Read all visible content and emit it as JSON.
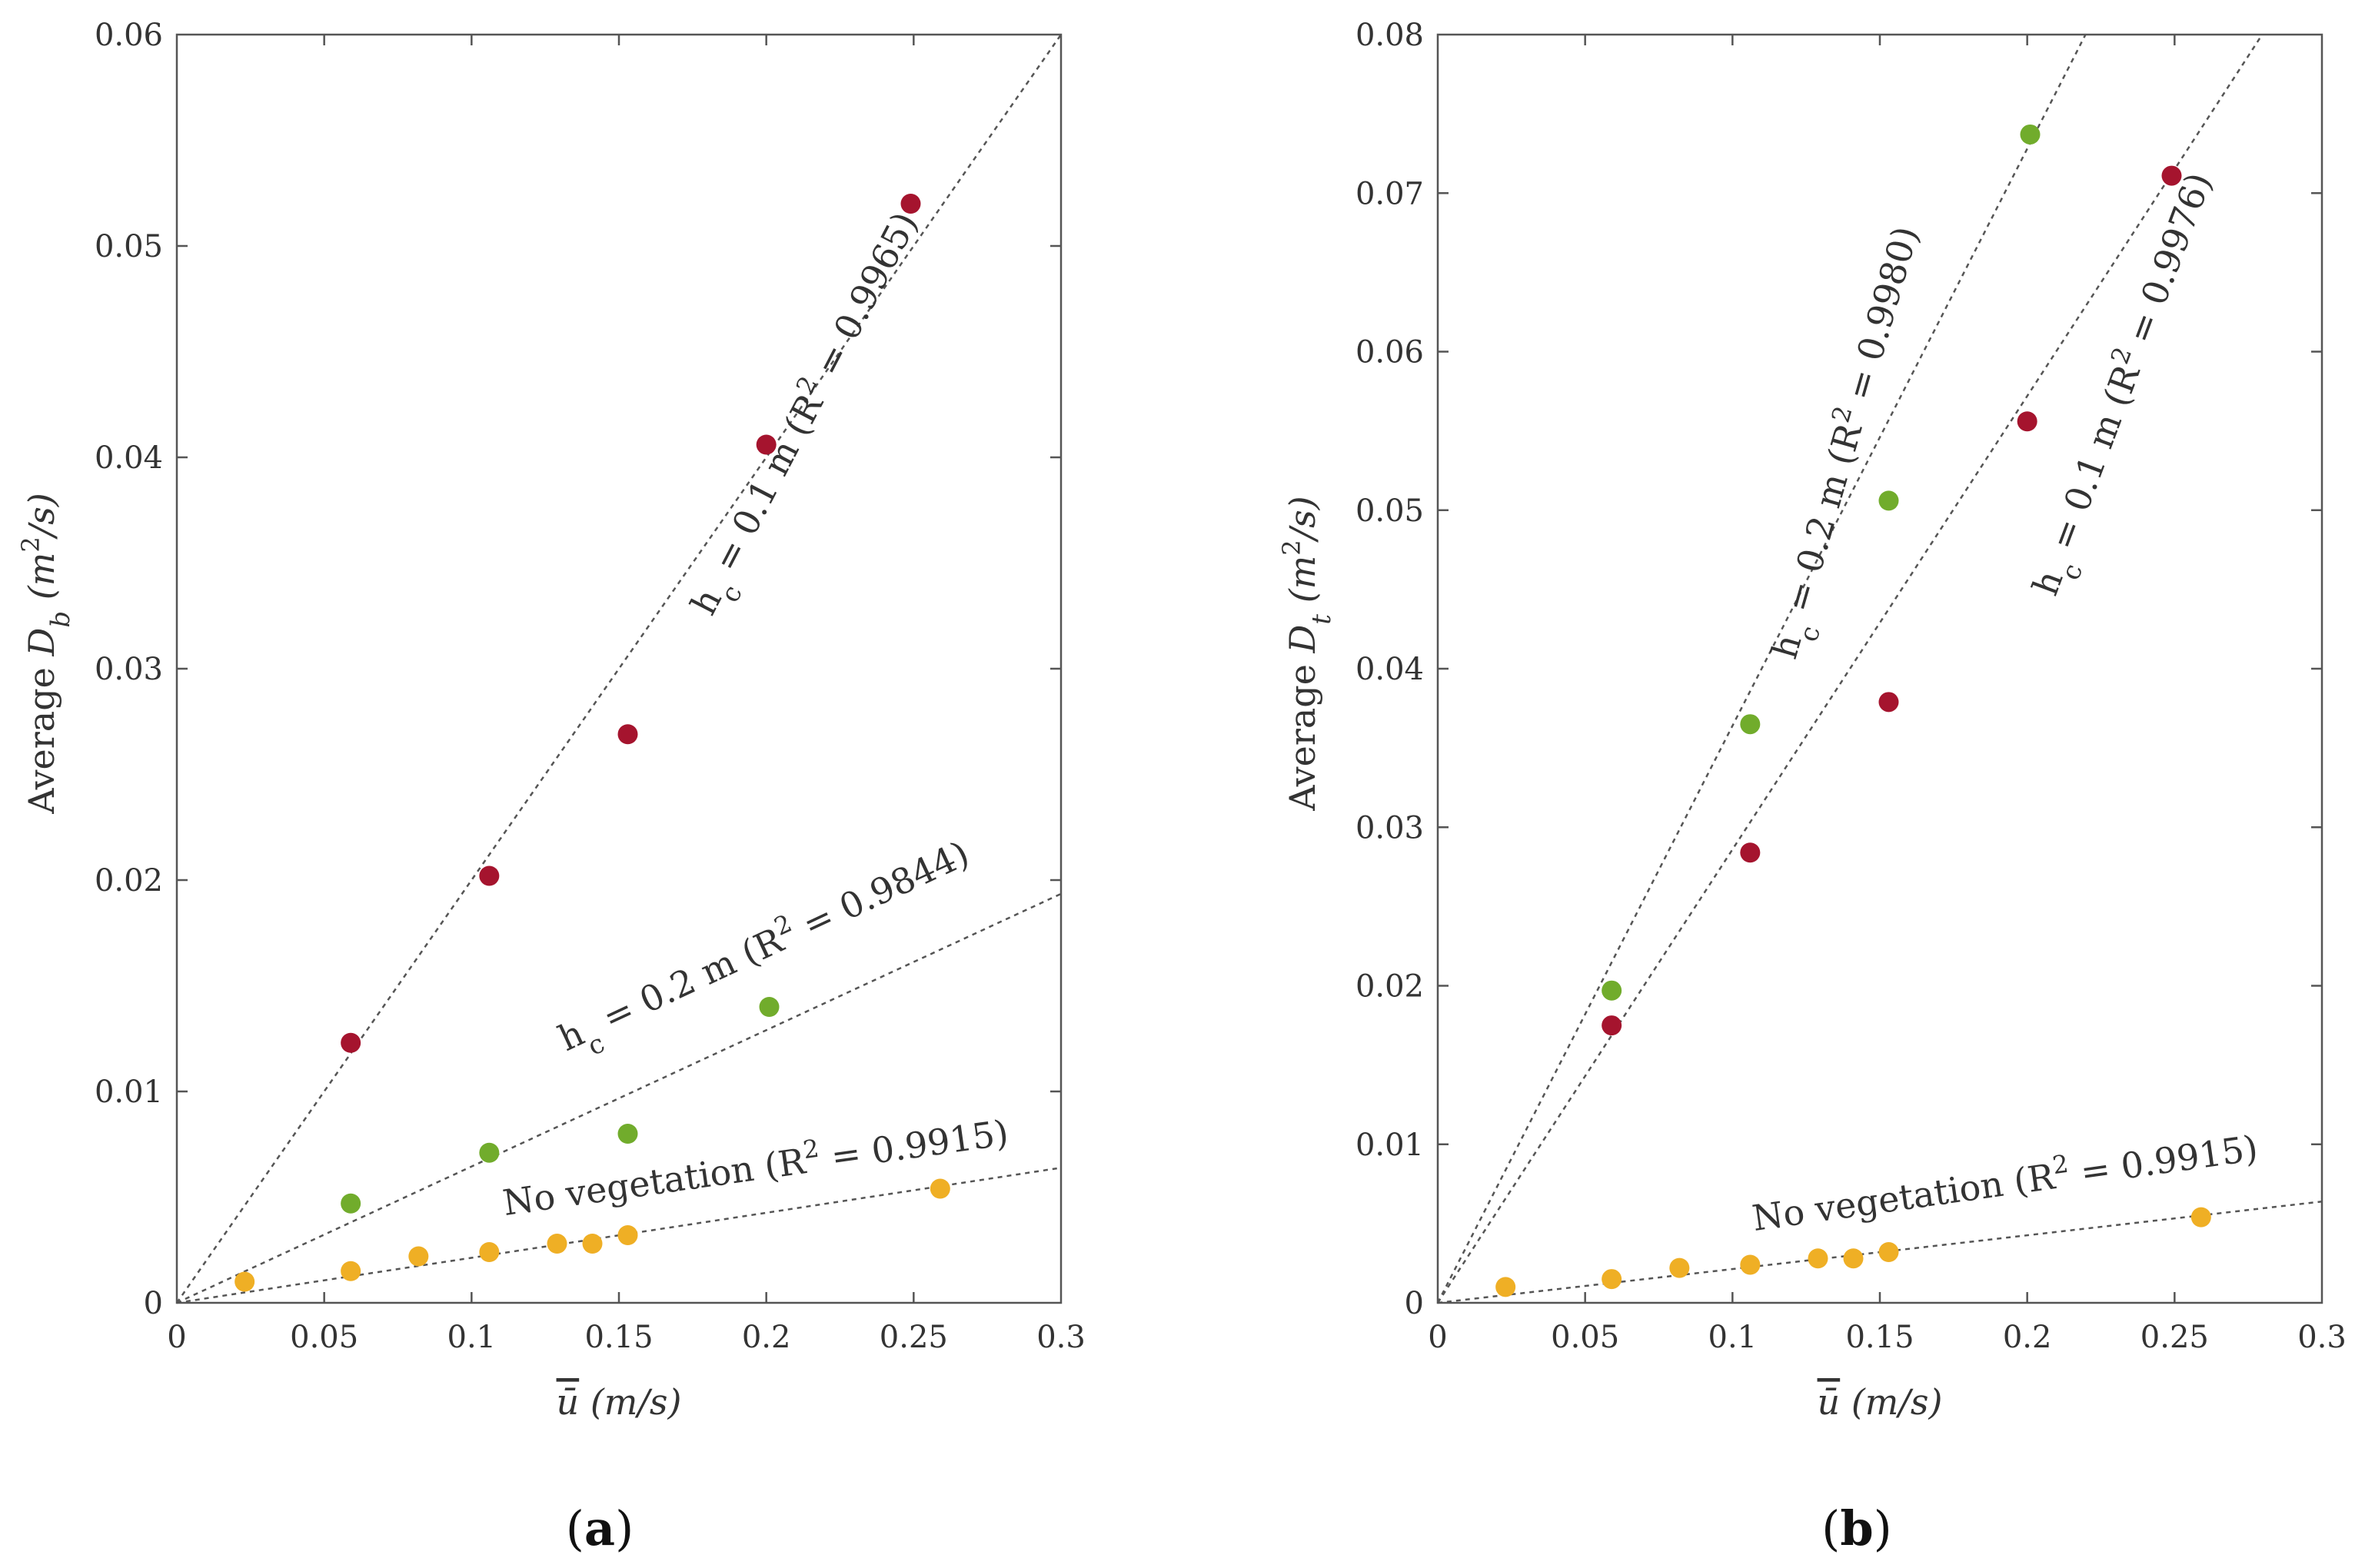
{
  "chart_data": [
    {
      "id": "a",
      "type": "scatter",
      "panel_label": "(a)",
      "xlabel": "ū̄   (m/s)",
      "ylabel": "Average D_b   (m²/s)",
      "ylabel_parts": {
        "prefix": "Average ",
        "symbol": "D",
        "sub": "b",
        "units_open": "(m",
        "units_sup": "2",
        "units_close": "/s)"
      },
      "xlabel_parts": {
        "symbol": "ū",
        "units": "(m/s)"
      },
      "xlim": [
        0,
        0.3
      ],
      "ylim": [
        0,
        0.06
      ],
      "x_ticks": [
        "0",
        "0.05",
        "0.1",
        "0.15",
        "0.2",
        "0.25",
        "0.3"
      ],
      "y_ticks": [
        "0",
        "0.01",
        "0.02",
        "0.03",
        "0.04",
        "0.05",
        "0.06"
      ],
      "series": [
        {
          "name": "hc = 0.1 m",
          "color": "#a5142e",
          "x": [
            0.059,
            0.106,
            0.153,
            0.2,
            0.249
          ],
          "y": [
            0.0123,
            0.0202,
            0.0269,
            0.0406,
            0.052
          ],
          "fit_slope": 0.2,
          "label_text": "h_c = 0.1 m (R² = 0.9965)",
          "label_parts": {
            "pre": "h",
            "sub": "c",
            "mid": " = 0.1 m (R",
            "sup": "2",
            "post": " = 0.9965)"
          }
        },
        {
          "name": "hc = 0.2 m",
          "color": "#71ac2c",
          "x": [
            0.059,
            0.106,
            0.153,
            0.201
          ],
          "y": [
            0.0047,
            0.0071,
            0.008,
            0.014
          ],
          "fit_slope": 0.0645,
          "label_text": "h_c = 0.2 m (R² = 0.9844)",
          "label_parts": {
            "pre": "h",
            "sub": "c",
            "mid": " = 0.2 m (R",
            "sup": "2",
            "post": " = 0.9844)"
          }
        },
        {
          "name": "No vegetation",
          "color": "#efaf25",
          "x": [
            0.023,
            0.059,
            0.082,
            0.106,
            0.129,
            0.141,
            0.153,
            0.259
          ],
          "y": [
            0.001,
            0.0015,
            0.0022,
            0.0024,
            0.0028,
            0.0028,
            0.0032,
            0.0054
          ],
          "fit_slope": 0.0213,
          "label_text": "No vegetation (R² = 0.9915)",
          "label_parts": {
            "pre": "No vegetation (R",
            "sub": "",
            "mid": "",
            "sup": "2",
            "post": " = 0.9915)"
          }
        }
      ]
    },
    {
      "id": "b",
      "type": "scatter",
      "panel_label": "(b)",
      "xlabel": "ū̄   (m/s)",
      "ylabel": "Average D_t   (m²/s)",
      "ylabel_parts": {
        "prefix": "Average ",
        "symbol": "D",
        "sub": "t",
        "units_open": "(m",
        "units_sup": "2",
        "units_close": "/s)"
      },
      "xlabel_parts": {
        "symbol": "ū",
        "units": "(m/s)"
      },
      "xlim": [
        0,
        0.3
      ],
      "ylim": [
        0,
        0.08
      ],
      "x_ticks": [
        "0",
        "0.05",
        "0.1",
        "0.15",
        "0.2",
        "0.25",
        "0.3"
      ],
      "y_ticks": [
        "0",
        "0.01",
        "0.02",
        "0.03",
        "0.04",
        "0.05",
        "0.06",
        "0.07",
        "0.08"
      ],
      "series": [
        {
          "name": "hc = 0.1 m",
          "color": "#a5142e",
          "x": [
            0.059,
            0.106,
            0.153,
            0.2,
            0.249
          ],
          "y": [
            0.0175,
            0.0284,
            0.0379,
            0.0556,
            0.0711
          ],
          "fit_slope": 0.286,
          "label_text": "h_c = 0.1 m (R² = 0.9976)",
          "label_parts": {
            "pre": "h",
            "sub": "c",
            "mid": " = 0.1 m (R",
            "sup": "2",
            "post": " = 0.9976)"
          }
        },
        {
          "name": "hc = 0.2 m",
          "color": "#71ac2c",
          "x": [
            0.059,
            0.106,
            0.153,
            0.201
          ],
          "y": [
            0.0197,
            0.0365,
            0.0506,
            0.0737
          ],
          "fit_slope": 0.364,
          "label_text": "h_c = 0.2 m (R² = 0.9980)",
          "label_parts": {
            "pre": "h",
            "sub": "c",
            "mid": " = 0.2 m (R",
            "sup": "2",
            "post": " = 0.9980)"
          }
        },
        {
          "name": "No vegetation",
          "color": "#efaf25",
          "x": [
            0.023,
            0.059,
            0.082,
            0.106,
            0.129,
            0.141,
            0.153,
            0.259
          ],
          "y": [
            0.001,
            0.0015,
            0.0022,
            0.0024,
            0.0028,
            0.0028,
            0.0032,
            0.0054
          ],
          "fit_slope": 0.0213,
          "label_text": "No vegetation (R² = 0.9915)",
          "label_parts": {
            "pre": "No vegetation (R",
            "sub": "",
            "mid": "",
            "sup": "2",
            "post": " = 0.9915)"
          }
        }
      ]
    }
  ]
}
